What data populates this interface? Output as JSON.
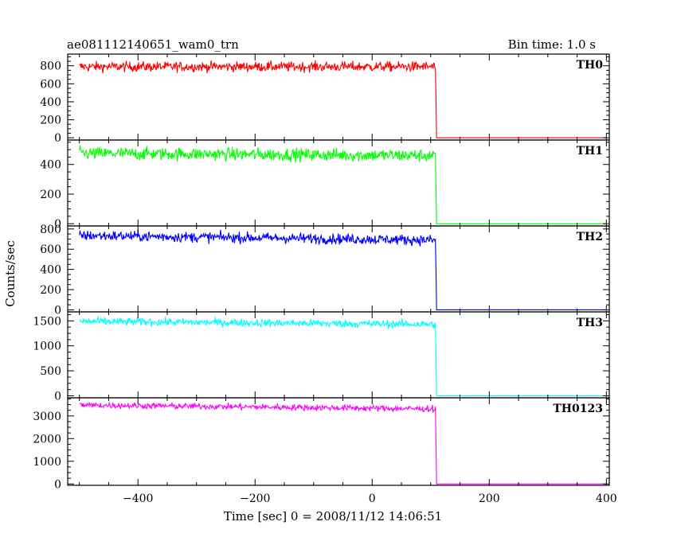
{
  "header": {
    "title": "ae081112140651_wam0_trn",
    "bin_time": "Bin time: 1.0 s"
  },
  "chart_data": {
    "type": "line",
    "xlabel": "Time [sec] 0 = 2008/11/12 14:06:51",
    "ylabel": "Counts/sec",
    "xlim": [
      -520,
      405
    ],
    "xticks": [
      -400,
      -200,
      0,
      200,
      400
    ],
    "step_time": 108,
    "panels": [
      {
        "name": "TH0",
        "color": "#ff0000",
        "level": 790,
        "noise": 28,
        "drift": 0,
        "after": 0,
        "ylim": [
          -25,
          930
        ],
        "yticks": [
          0,
          200,
          400,
          600,
          800
        ]
      },
      {
        "name": "TH1",
        "color": "#00ff00",
        "level": 475,
        "noise": 22,
        "drift": -15,
        "after": 0,
        "ylim": [
          -15,
          565
        ],
        "yticks": [
          0,
          200,
          400
        ]
      },
      {
        "name": "TH2",
        "color": "#0000ff",
        "level": 735,
        "noise": 26,
        "drift": -45,
        "after": 0,
        "ylim": [
          -20,
          830
        ],
        "yticks": [
          0,
          200,
          400,
          600,
          800
        ]
      },
      {
        "name": "TH3",
        "color": "#00ffff",
        "level": 1490,
        "noise": 40,
        "drift": -60,
        "after": 0,
        "ylim": [
          -40,
          1680
        ],
        "yticks": [
          0,
          500,
          1000,
          1500
        ]
      },
      {
        "name": "TH0123",
        "color": "#ff00ff",
        "level": 3480,
        "noise": 70,
        "drift": -170,
        "after": 0,
        "ylim": [
          -60,
          3800
        ],
        "yticks": [
          0,
          1000,
          2000,
          3000
        ]
      }
    ]
  }
}
